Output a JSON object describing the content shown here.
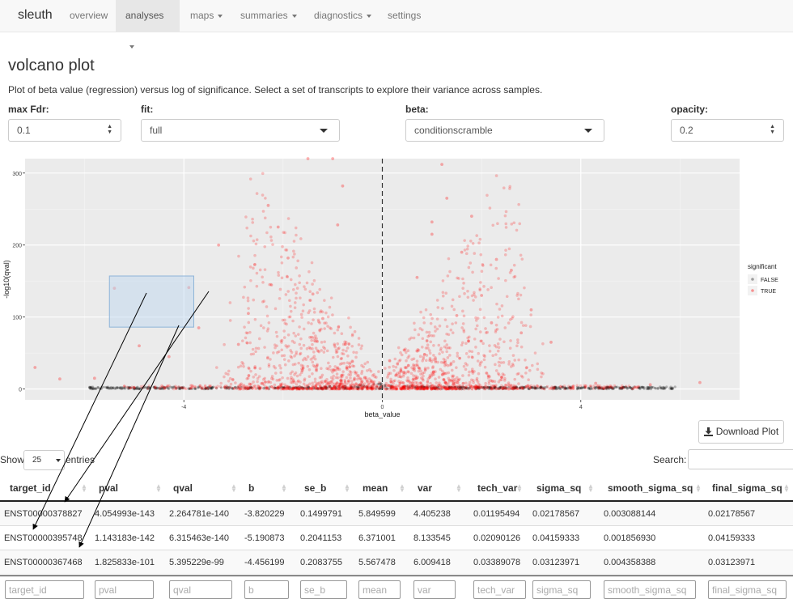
{
  "navbar": {
    "brand": "sleuth",
    "items": [
      {
        "label": "overview",
        "dropdown": false,
        "active": false
      },
      {
        "label": "analyses",
        "dropdown": true,
        "active": true
      },
      {
        "label": "maps",
        "dropdown": true,
        "active": false
      },
      {
        "label": "summaries",
        "dropdown": true,
        "active": false
      },
      {
        "label": "diagnostics",
        "dropdown": true,
        "active": false
      },
      {
        "label": "settings",
        "dropdown": false,
        "active": false
      }
    ]
  },
  "page": {
    "title": "volcano plot",
    "description": "Plot of beta value (regression) versus log of significance. Select a set of transcripts to explore their variance across samples."
  },
  "controls": {
    "max_fdr": {
      "label": "max Fdr:",
      "value": "0.1"
    },
    "fit": {
      "label": "fit:",
      "value": "full"
    },
    "beta": {
      "label": "beta:",
      "value": "conditionscramble"
    },
    "opacity": {
      "label": "opacity:",
      "value": "0.2"
    }
  },
  "chart_data": {
    "type": "scatter",
    "title": "",
    "xlabel": "beta_value",
    "ylabel": "-log10(qval)",
    "xlim": [
      -7.2,
      7.2
    ],
    "ylim": [
      -15,
      320
    ],
    "x_ticks": [
      -4,
      0,
      4
    ],
    "y_ticks": [
      0,
      100,
      200,
      300
    ],
    "grid": true,
    "reference_line": {
      "x": 0,
      "style": "dashed"
    },
    "legend": {
      "title": "significant",
      "placement": "right",
      "entries": [
        "FALSE",
        "TRUE"
      ]
    },
    "series": [
      {
        "name": "FALSE",
        "color": "#000000"
      },
      {
        "name": "TRUE",
        "color": "#ff0000"
      }
    ],
    "points_true": [
      [
        -5.4,
        140
      ],
      [
        -3.9,
        141
      ],
      [
        -7.0,
        30
      ],
      [
        -6.5,
        14
      ],
      [
        -5.8,
        15
      ],
      [
        -3.3,
        200
      ],
      [
        -2.3,
        255
      ],
      [
        -2.1,
        225
      ],
      [
        -1.9,
        182
      ],
      [
        -1.5,
        320
      ],
      [
        -0.8,
        282
      ],
      [
        -1.0,
        320
      ],
      [
        -0.9,
        228
      ],
      [
        1.0,
        232
      ],
      [
        1.3,
        265
      ],
      [
        1.2,
        312
      ],
      [
        1.0,
        215
      ],
      [
        0.7,
        155
      ],
      [
        1.6,
        190
      ],
      [
        1.8,
        240
      ],
      [
        2.3,
        180
      ],
      [
        2.6,
        165
      ],
      [
        2.0,
        130
      ],
      [
        3.0,
        110
      ],
      [
        2.8,
        78
      ],
      [
        3.4,
        65
      ],
      [
        4.3,
        8
      ],
      [
        5.4,
        6
      ],
      [
        6.4,
        9
      ],
      [
        -4.9,
        60
      ],
      [
        -3.7,
        85
      ],
      [
        -2.7,
        105
      ],
      [
        -2.9,
        62
      ],
      [
        -4.3,
        45
      ],
      [
        1.5,
        102
      ],
      [
        2.2,
        92
      ],
      [
        -1.4,
        132
      ],
      [
        -1.2,
        98
      ]
    ],
    "selection_box": {
      "x": [
        -5.5,
        -3.8
      ],
      "y": [
        86,
        157
      ]
    }
  },
  "download": {
    "label": "Download Plot"
  },
  "table_controls": {
    "show_label": "Show",
    "entries_label": "entries",
    "page_length": "25",
    "search_label": "Search:"
  },
  "table": {
    "columns": [
      "target_id",
      "pval",
      "qval",
      "b",
      "se_b",
      "mean",
      "var",
      "tech_var",
      "sigma_sq",
      "smooth_sigma_sq",
      "final_sigma_sq"
    ],
    "rows": [
      [
        "ENST00000378827",
        "4.054993e-143",
        "2.264781e-140",
        "-3.820229",
        "0.1499791",
        "5.849599",
        "4.405238",
        "0.01195494",
        "0.02178567",
        "0.003088144",
        "0.02178567"
      ],
      [
        "ENST00000395748",
        "1.143183e-142",
        "6.315463e-140",
        "-5.190873",
        "0.2041153",
        "6.371001",
        "8.133545",
        "0.02090126",
        "0.04159333",
        "0.001856930",
        "0.04159333"
      ],
      [
        "ENST00000367468",
        "1.825833e-101",
        "5.395229e-99",
        "-4.456199",
        "0.2083755",
        "5.567478",
        "6.009418",
        "0.03389078",
        "0.03123971",
        "0.004358388",
        "0.03123971"
      ]
    ]
  }
}
